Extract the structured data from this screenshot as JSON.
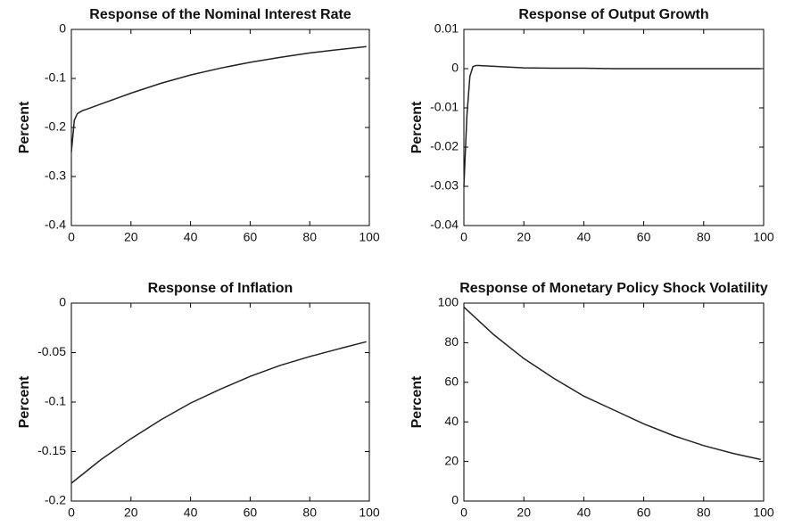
{
  "chart_data": [
    {
      "type": "line",
      "title": "Response of the Nominal Interest Rate",
      "ylabel": "Percent",
      "x": [
        0,
        1,
        2,
        3,
        4,
        5,
        10,
        15,
        20,
        30,
        40,
        50,
        60,
        70,
        80,
        90,
        99
      ],
      "values": [
        -0.25,
        -0.185,
        -0.172,
        -0.168,
        -0.165,
        -0.163,
        -0.152,
        -0.141,
        -0.13,
        -0.11,
        -0.093,
        -0.079,
        -0.067,
        -0.057,
        -0.048,
        -0.041,
        -0.035
      ],
      "color": "#222222",
      "xlim": [
        0,
        100
      ],
      "xticks": [
        0,
        20,
        40,
        60,
        80,
        100
      ],
      "ylim": [
        -0.4,
        0
      ],
      "yticks": [
        -0.4,
        -0.3,
        -0.2,
        -0.1,
        0
      ]
    },
    {
      "type": "line",
      "title": "Response of Output Growth",
      "ylabel": "Percent",
      "x": [
        0,
        1,
        2,
        3,
        4,
        5,
        10,
        15,
        20,
        30,
        40,
        50,
        60,
        70,
        80,
        90,
        99
      ],
      "values": [
        -0.03,
        -0.012,
        -0.002,
        0.0005,
        0.0008,
        0.0008,
        0.0006,
        0.0004,
        0.0002,
        0.0001,
        0.0001,
        0,
        0,
        0,
        0,
        0,
        0
      ],
      "color": "#222222",
      "xlim": [
        0,
        100
      ],
      "xticks": [
        0,
        20,
        40,
        60,
        80,
        100
      ],
      "ylim": [
        -0.04,
        0.01
      ],
      "yticks": [
        -0.04,
        -0.03,
        -0.02,
        -0.01,
        0,
        0.01
      ]
    },
    {
      "type": "line",
      "title": "Response of Inflation",
      "ylabel": "Percent",
      "x": [
        0,
        10,
        20,
        30,
        40,
        50,
        60,
        70,
        80,
        90,
        99
      ],
      "values": [
        -0.182,
        -0.158,
        -0.137,
        -0.118,
        -0.101,
        -0.087,
        -0.074,
        -0.063,
        -0.054,
        -0.046,
        -0.039
      ],
      "color": "#222222",
      "xlim": [
        0,
        100
      ],
      "xticks": [
        0,
        20,
        40,
        60,
        80,
        100
      ],
      "ylim": [
        -0.2,
        0
      ],
      "yticks": [
        -0.2,
        -0.15,
        -0.1,
        -0.05,
        0
      ]
    },
    {
      "type": "line",
      "title": "Response of Monetary Policy Shock Volatility",
      "ylabel": "Percent",
      "x": [
        0,
        10,
        20,
        30,
        40,
        50,
        60,
        70,
        80,
        90,
        99
      ],
      "values": [
        98,
        84,
        72,
        62,
        53,
        46,
        39,
        33,
        28,
        24,
        21
      ],
      "color": "#222222",
      "xlim": [
        0,
        100
      ],
      "xticks": [
        0,
        20,
        40,
        60,
        80,
        100
      ],
      "ylim": [
        0,
        100
      ],
      "yticks": [
        0,
        20,
        40,
        60,
        80,
        100
      ]
    }
  ]
}
